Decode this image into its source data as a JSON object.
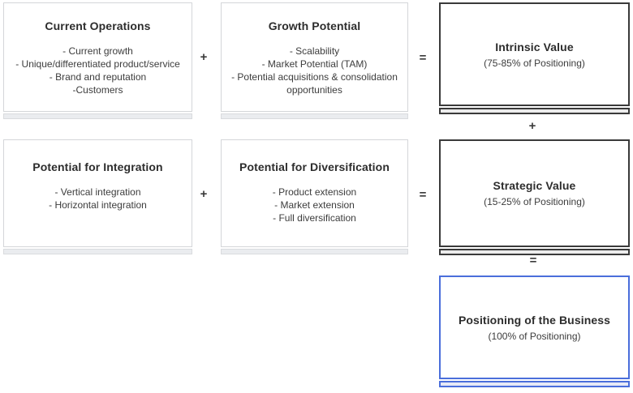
{
  "diagram": {
    "boxes": {
      "current_operations": {
        "title": "Current Operations",
        "items": [
          "- Current growth",
          "- Unique/differentiated product/service",
          "- Brand and reputation",
          "-Customers"
        ]
      },
      "growth_potential": {
        "title": "Growth Potential",
        "items": [
          "- Scalability",
          "- Market Potential (TAM)",
          "- Potential acquisitions & consolidation opportunities"
        ]
      },
      "intrinsic_value": {
        "title": "Intrinsic Value",
        "subtitle": "(75-85% of Positioning)"
      },
      "potential_integration": {
        "title": "Potential for Integration",
        "items": [
          "- Vertical integration",
          "- Horizontal integration"
        ]
      },
      "potential_diversification": {
        "title": "Potential for Diversification",
        "items": [
          "- Product extension",
          "- Market extension",
          "- Full diversification"
        ]
      },
      "strategic_value": {
        "title": "Strategic Value",
        "subtitle": "(15-25% of Positioning)"
      },
      "positioning": {
        "title": "Positioning of the Business",
        "subtitle": "(100% of Positioning)"
      }
    },
    "operators": {
      "row1_plus": "+",
      "row1_equals": "=",
      "row2_plus": "+",
      "row2_equals": "=",
      "col3_plus": "+",
      "col3_equals": "="
    },
    "colors": {
      "light_box_border": "#d4d6d9",
      "dark_box_border": "#3a3a3a",
      "accent_blue_border": "#4a6edb",
      "strip_fill_light": "#eaecef",
      "strip_fill_dark": "#ececec",
      "strip_fill_blue": "#e6e9f6",
      "text": "#333333",
      "background": "#ffffff"
    }
  }
}
